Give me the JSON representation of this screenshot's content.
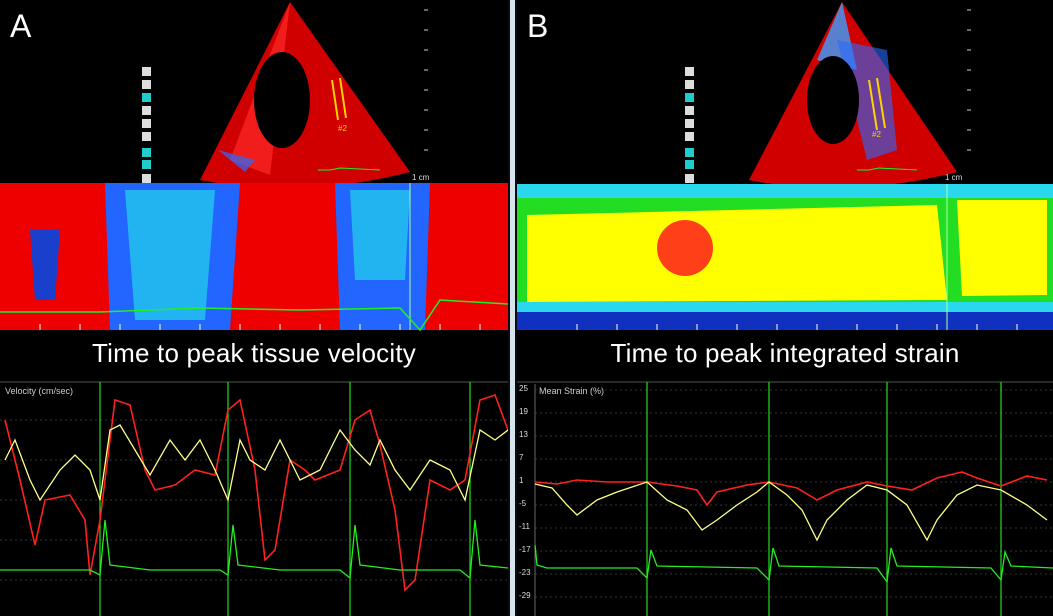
{
  "panels": [
    {
      "letter": "A",
      "caption": "Time to peak tissue velocity",
      "trace_label": "Velocity (cm/sec)",
      "scale_label": "1 cm",
      "mmode_tag": "",
      "region_label": "#2",
      "colors": {
        "mmode_primary": "#ff0000",
        "mmode_secondary": "#2266ff",
        "trace_1": "#ff2020",
        "trace_2": "#ffff88",
        "ecg": "#22ee22"
      }
    },
    {
      "letter": "B",
      "caption": "Time to peak integrated strain",
      "trace_label": "Mean Strain (%)",
      "scale_label": "1 cm",
      "region_label": "#2",
      "y_ticks": [
        "25",
        "19",
        "13",
        "7",
        "1",
        "-5",
        "-11",
        "-17",
        "-23",
        "-29"
      ],
      "colors": {
        "mmode_primary": "#ffff00",
        "mmode_secondary": "#22dd22",
        "trace_1": "#ff2020",
        "trace_2": "#ffff88",
        "ecg": "#22ee22"
      }
    }
  ]
}
